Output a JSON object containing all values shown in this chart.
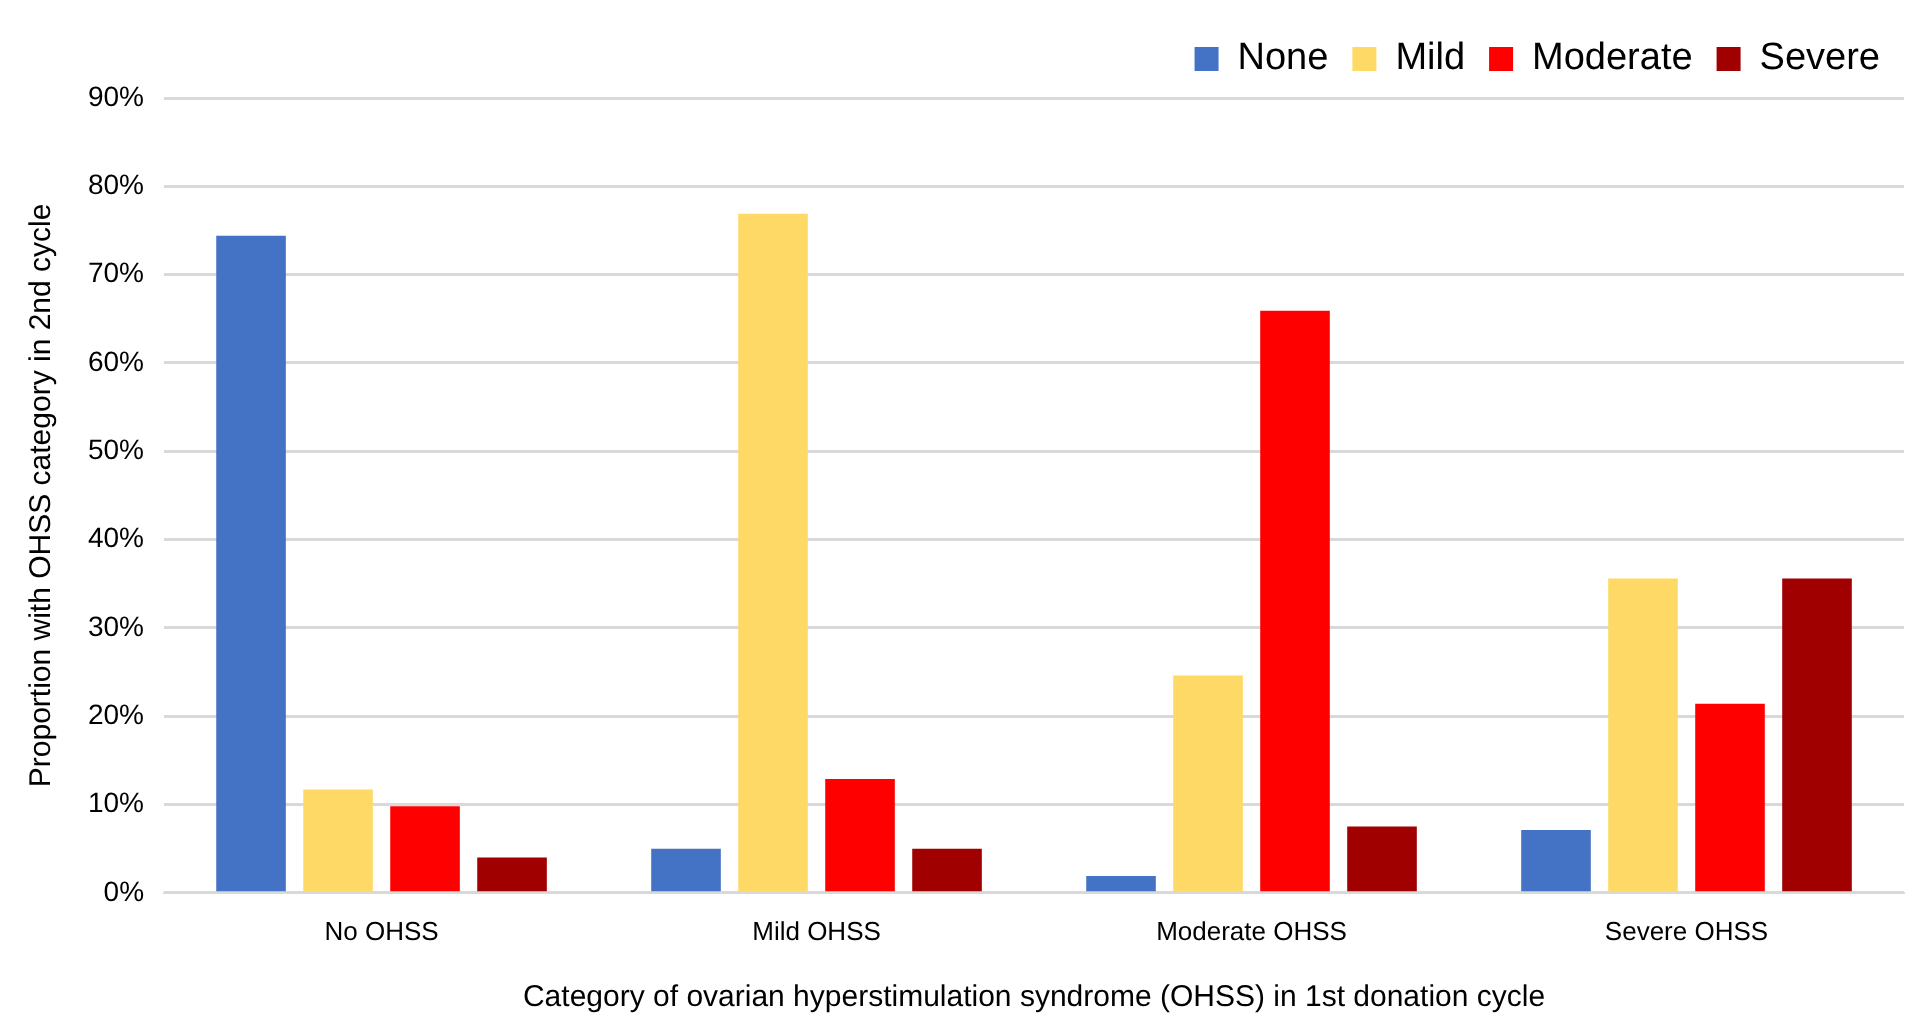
{
  "chart_data": {
    "type": "bar",
    "xlabel": "Category of ovarian hyperstimulation syndrome (OHSS) in 1st donation cycle",
    "ylabel": "Proportion with OHSS category in 2nd cycle",
    "categories": [
      "No OHSS",
      "Mild OHSS",
      "Moderate OHSS",
      "Severe OHSS"
    ],
    "series": [
      {
        "name": "None",
        "color": "#4472c4",
        "values": [
          74.4,
          5.0,
          1.9,
          7.1
        ]
      },
      {
        "name": "Mild",
        "color": "#ffd966",
        "values": [
          11.7,
          76.9,
          24.6,
          35.6
        ]
      },
      {
        "name": "Moderate",
        "color": "#ff0000",
        "values": [
          9.8,
          12.9,
          65.9,
          21.4
        ]
      },
      {
        "name": "Severe",
        "color": "#a00000",
        "values": [
          4.0,
          5.0,
          7.5,
          35.6
        ]
      }
    ],
    "ylim": [
      0,
      90
    ],
    "yticks": [
      {
        "value": 0,
        "label": "0%"
      },
      {
        "value": 10,
        "label": "10%"
      },
      {
        "value": 20,
        "label": "20%"
      },
      {
        "value": 30,
        "label": "30%"
      },
      {
        "value": 40,
        "label": "40%"
      },
      {
        "value": 50,
        "label": "50%"
      },
      {
        "value": 60,
        "label": "60%"
      },
      {
        "value": 70,
        "label": "70%"
      },
      {
        "value": 80,
        "label": "80%"
      },
      {
        "value": 90,
        "label": "90%"
      }
    ],
    "grid": "y",
    "legend": "top right"
  }
}
